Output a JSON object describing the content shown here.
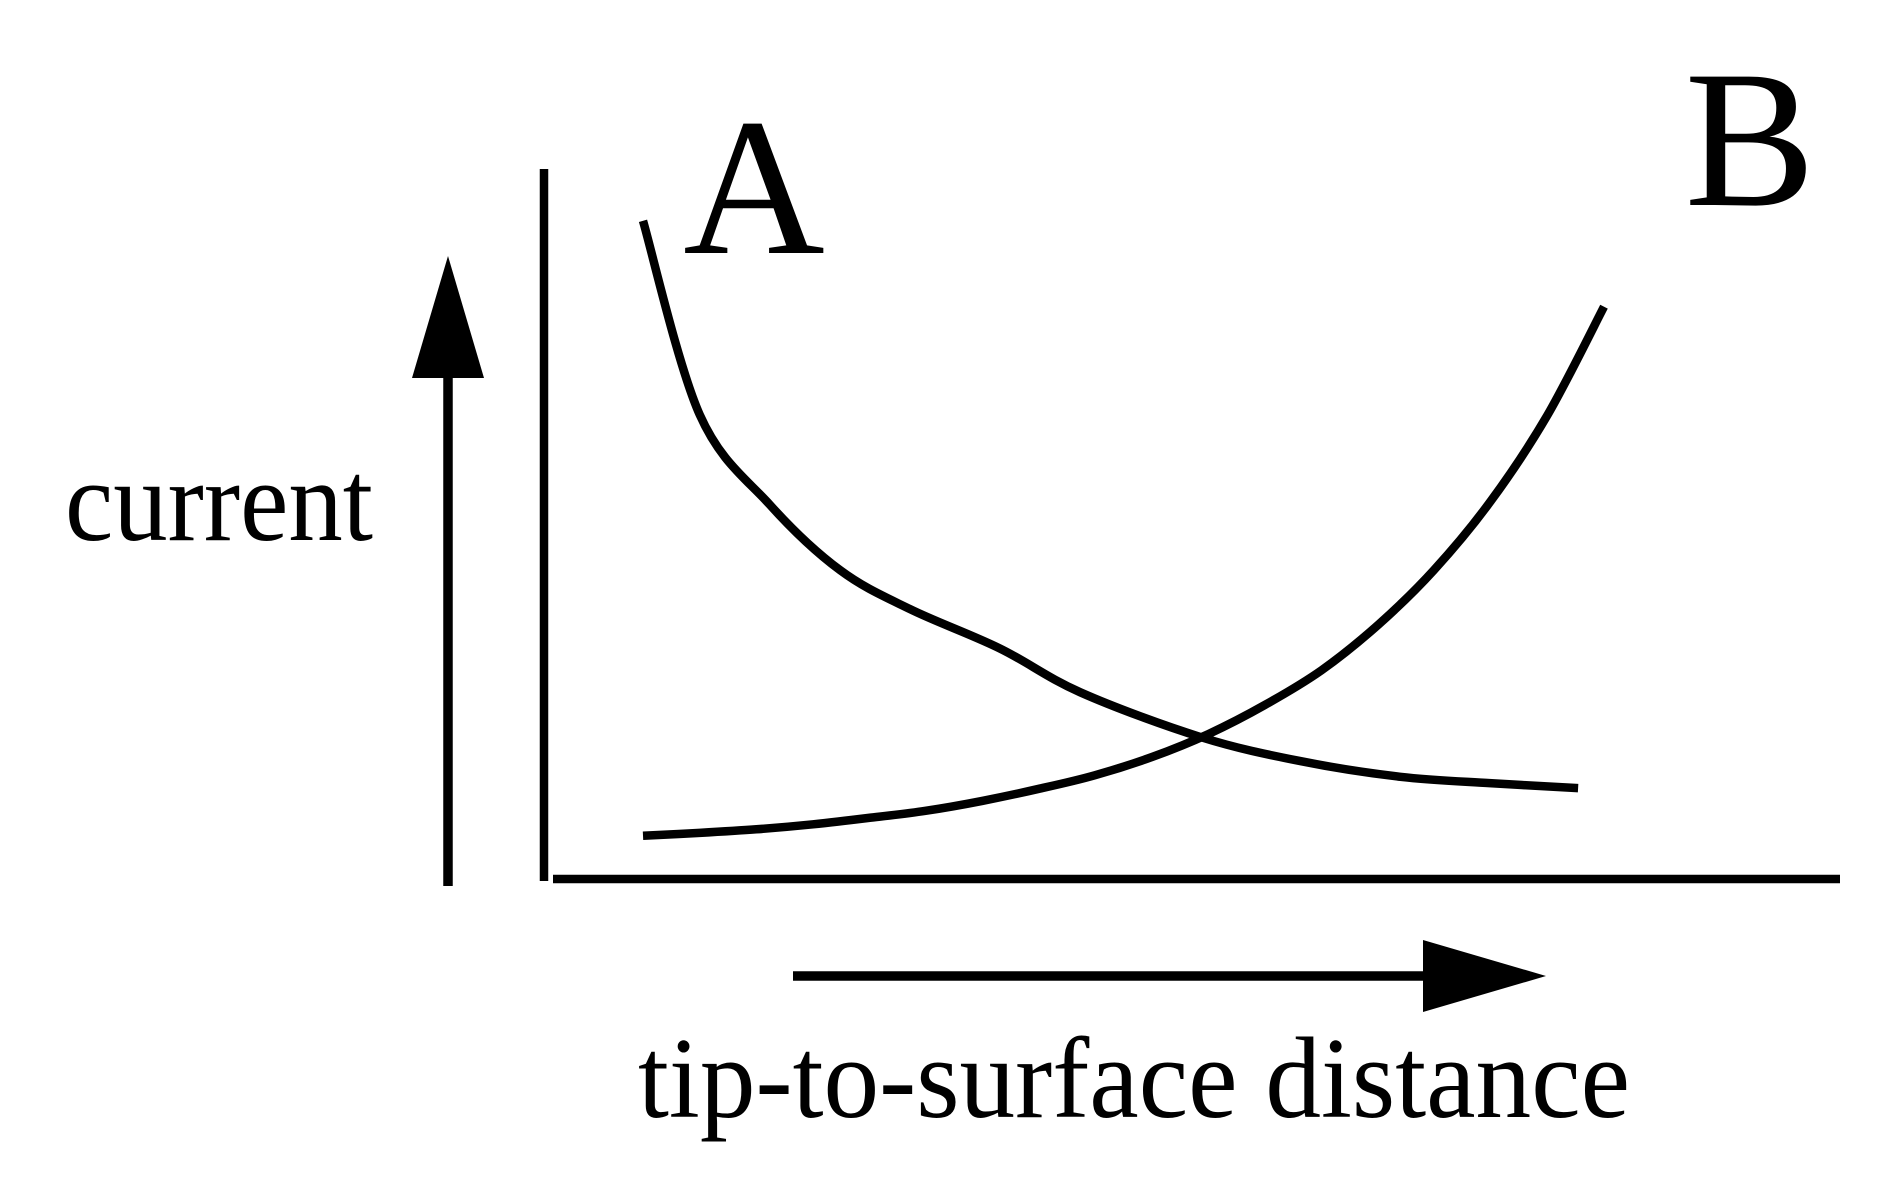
{
  "figure": {
    "background_color": "#ffffff",
    "ink_color": "#000000",
    "description": "Schematic plot of tunneling/contact current versus tip-to-surface distance with two crossing curves labeled A and B. No numeric scales, ticks or gridlines; axes indicated with plain lines and separate direction arrows."
  },
  "chart_data": {
    "type": "line",
    "title": "",
    "xlabel": "tip-to-surface distance",
    "ylabel": "current",
    "legend": "none",
    "grid": false,
    "axes": {
      "style": "schematic — bare axis lines with detached direction arrows, no tick marks",
      "x_ticks": [],
      "y_ticks": [],
      "x_range_normalized": [
        0,
        1
      ],
      "y_range_normalized": [
        0,
        1
      ]
    },
    "crossing_point_normalized": [
      0.58,
      0.2
    ],
    "series": [
      {
        "name": "A",
        "label_position": "upper left, next to the start of the curve",
        "description": "current decays steeply (quasi-exponentially) as tip-to-surface distance increases, flattening to a low plateau",
        "points_normalized": [
          [
            0.0,
            0.927
          ],
          [
            0.059,
            0.654
          ],
          [
            0.132,
            0.527
          ],
          [
            0.205,
            0.435
          ],
          [
            0.278,
            0.38
          ],
          [
            0.371,
            0.325
          ],
          [
            0.455,
            0.263
          ],
          [
            0.58,
            0.2
          ],
          [
            0.684,
            0.166
          ],
          [
            0.788,
            0.144
          ],
          [
            0.881,
            0.135
          ],
          [
            0.973,
            0.128
          ]
        ]
      },
      {
        "name": "B",
        "label_position": "upper right, above the end of the curve",
        "description": "current stays low at small distance then rises steeply (quasi-exponentially) at larger distance",
        "points_normalized": [
          [
            0.0,
            0.061
          ],
          [
            0.059,
            0.065
          ],
          [
            0.118,
            0.07
          ],
          [
            0.177,
            0.077
          ],
          [
            0.235,
            0.086
          ],
          [
            0.294,
            0.096
          ],
          [
            0.353,
            0.11
          ],
          [
            0.412,
            0.127
          ],
          [
            0.47,
            0.146
          ],
          [
            0.53,
            0.172
          ],
          [
            0.588,
            0.204
          ],
          [
            0.647,
            0.245
          ],
          [
            0.706,
            0.294
          ],
          [
            0.765,
            0.358
          ],
          [
            0.823,
            0.435
          ],
          [
            0.882,
            0.532
          ],
          [
            0.941,
            0.653
          ],
          [
            1.0,
            0.806
          ]
        ]
      }
    ]
  }
}
